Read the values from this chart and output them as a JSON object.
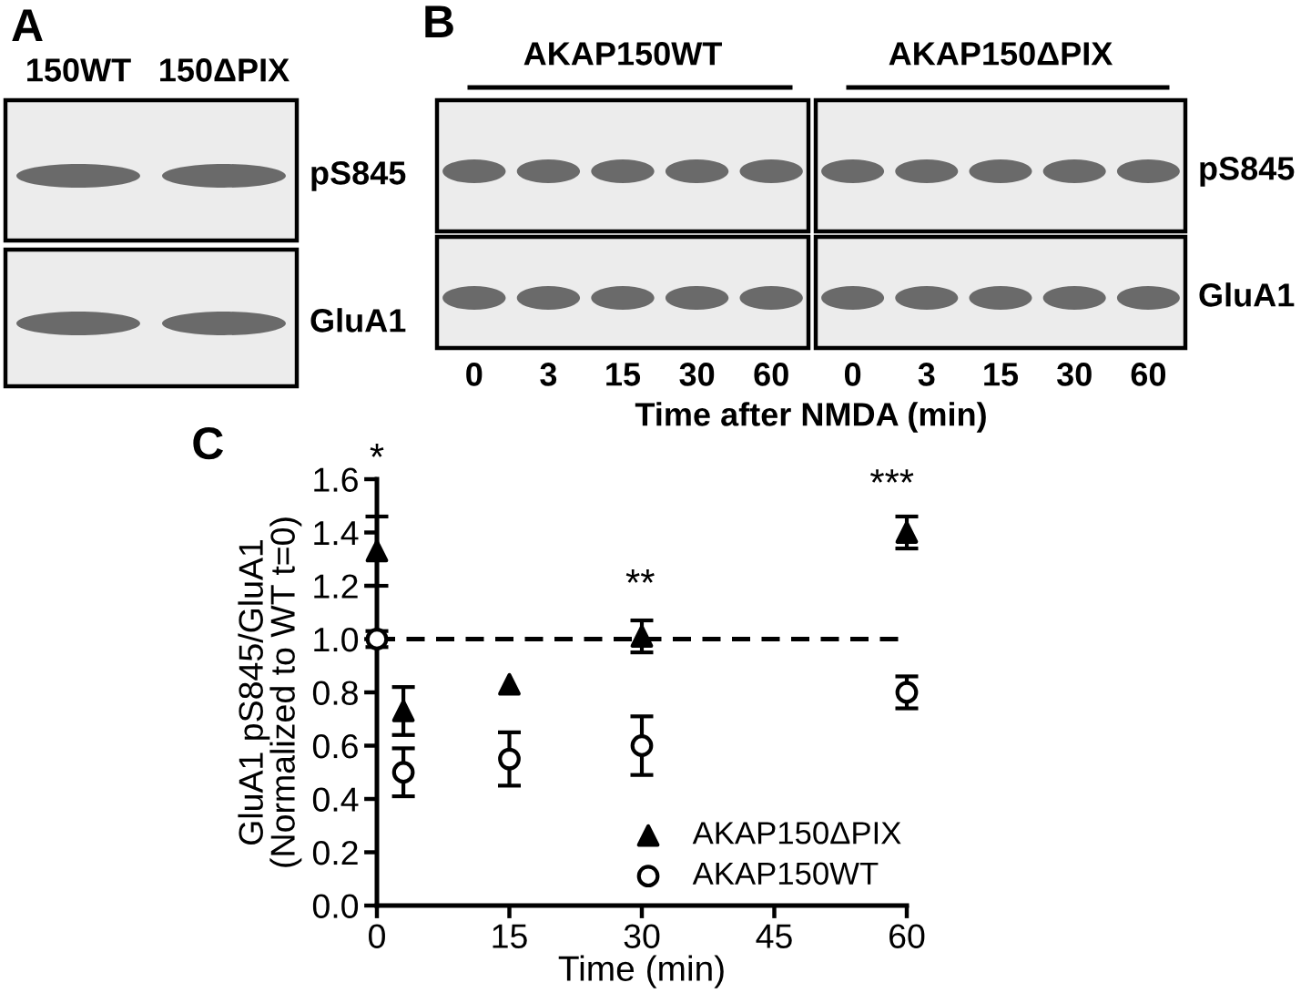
{
  "chart_data": [
    {
      "type": "other",
      "title": "A",
      "categories": [
        "150WT",
        "150ΔPIX"
      ],
      "annotations": [
        "pS845",
        "GluA1"
      ]
    },
    {
      "type": "other",
      "title": "B",
      "categories": [
        "0",
        "3",
        "15",
        "30",
        "60",
        "0",
        "3",
        "15",
        "30",
        "60"
      ],
      "xlabel": "Time after NMDA (min)",
      "annotations": [
        "AKAP150WT",
        "AKAP150ΔPIX",
        "pS845",
        "GluA1"
      ]
    },
    {
      "type": "scatter",
      "title": "C",
      "xlabel": "Time (min)",
      "ylabel": "GluA1 pS845/GluA1\n(Normalized to WT t=0)",
      "x": [
        0,
        3,
        15,
        30,
        60
      ],
      "series": [
        {
          "name": "AKAP150ΔPIX",
          "color": "#000000",
          "marker": "triangle",
          "values": [
            1.33,
            0.73,
            0.83,
            1.01,
            1.4
          ],
          "errors": [
            0.13,
            0.09,
            null,
            0.06,
            0.06
          ]
        },
        {
          "name": "AKAP150WT",
          "color": "#ffffff",
          "marker": "circle",
          "values": [
            1.0,
            0.5,
            0.55,
            0.6,
            0.8
          ],
          "errors": [
            0.03,
            0.09,
            0.1,
            0.11,
            0.06
          ]
        }
      ],
      "xlim": [
        0,
        60
      ],
      "xticks": [
        0,
        15,
        30,
        45,
        60
      ],
      "ylim": [
        0,
        1.6
      ],
      "yticks": [
        {
          "value": 0,
          "label": "0.0"
        },
        {
          "value": 0.2,
          "label": "0.2"
        },
        {
          "value": 0.4,
          "label": "0.4"
        },
        {
          "value": 0.6,
          "label": "0.6"
        },
        {
          "value": 0.8,
          "label": "0.8"
        },
        {
          "value": 1.0,
          "label": "1.0"
        },
        {
          "value": 1.2,
          "label": "1.2"
        },
        {
          "value": 1.4,
          "label": "1.4"
        },
        {
          "value": 1.6,
          "label": "1.6"
        }
      ],
      "ref_lines": [
        {
          "axis": "y",
          "value": 1.0,
          "color": "#000000",
          "line_style": "dashed"
        }
      ],
      "annotations": [
        "*",
        "**",
        "***"
      ],
      "legend": "bottom right"
    }
  ]
}
